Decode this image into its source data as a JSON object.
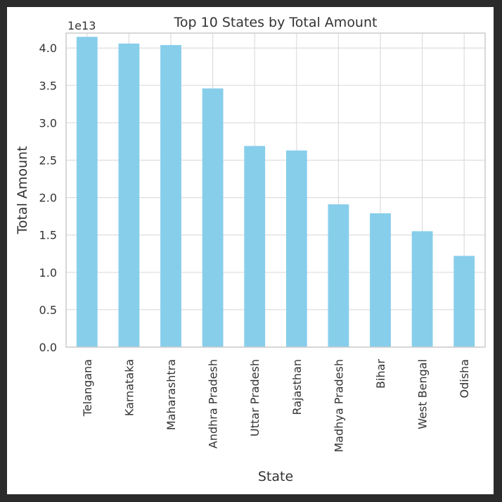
{
  "chart_data": {
    "type": "bar",
    "title": "Top 10 States by Total Amount",
    "xlabel": "State",
    "ylabel": "Total Amount",
    "scale_label": "1e13",
    "scale": 10000000000000.0,
    "categories": [
      "Telangana",
      "Karnataka",
      "Maharashtra",
      "Andhra Pradesh",
      "Uttar Pradesh",
      "Rajasthan",
      "Madhya Pradesh",
      "Bihar",
      "West Bengal",
      "Odisha"
    ],
    "values": [
      41500000000000.0,
      40600000000000.0,
      40400000000000.0,
      34600000000000.0,
      26900000000000.0,
      26300000000000.0,
      19100000000000.0,
      17900000000000.0,
      15500000000000.0,
      12200000000000.0
    ],
    "yticks": [
      "0.0",
      "0.5",
      "1.0",
      "1.5",
      "2.0",
      "2.5",
      "3.0",
      "3.5",
      "4.0"
    ],
    "ylim": [
      0,
      42000000000000.0
    ],
    "grid": true,
    "colors": {
      "bar": "#87ceeb",
      "grid": "#dddddd",
      "spine": "#cccccc",
      "text": "#333333"
    }
  }
}
